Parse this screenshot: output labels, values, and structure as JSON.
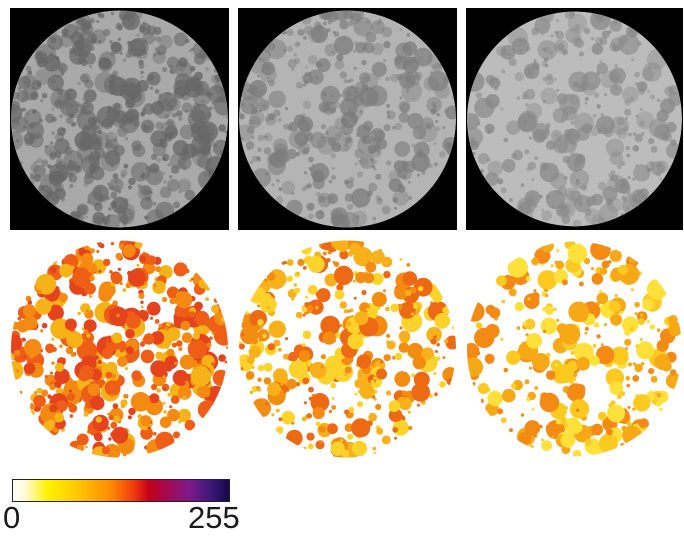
{
  "panels": {
    "top_row": [
      {
        "id": "raw-1",
        "kind": "grayscale-micrograph",
        "background": "#000000",
        "disc": "#a9a9a9",
        "blob": "#676767",
        "seed": 11,
        "density": 1.0
      },
      {
        "id": "raw-2",
        "kind": "grayscale-micrograph",
        "background": "#000000",
        "disc": "#b4b4b4",
        "blob": "#7c7c7c",
        "seed": 23,
        "density": 0.75
      },
      {
        "id": "raw-3",
        "kind": "grayscale-micrograph",
        "background": "#000000",
        "disc": "#bcbcbc",
        "blob": "#888888",
        "seed": 37,
        "density": 0.6
      }
    ],
    "bottom_row": [
      {
        "id": "heatmap-1",
        "kind": "heatmap",
        "background": "#ffffff",
        "colors": [
          "#f6b318",
          "#f48a12",
          "#ef5e16",
          "#e4431d"
        ],
        "seed": 11,
        "density": 1.0
      },
      {
        "id": "heatmap-2",
        "kind": "heatmap",
        "background": "#ffffff",
        "colors": [
          "#fcd32a",
          "#f8b11a",
          "#f38d12",
          "#ee6914"
        ],
        "seed": 23,
        "density": 0.75
      },
      {
        "id": "heatmap-3",
        "kind": "heatmap",
        "background": "#ffffff",
        "colors": [
          "#fde13a",
          "#fbc920",
          "#f7a816",
          "#f38a14"
        ],
        "seed": 37,
        "density": 0.6
      }
    ]
  },
  "colorbar": {
    "min_label": "0",
    "max_label": "255",
    "stops": [
      "#ffffff",
      "#fff100",
      "#ff8c00",
      "#c3001a",
      "#7d1a8c",
      "#15094a"
    ]
  }
}
